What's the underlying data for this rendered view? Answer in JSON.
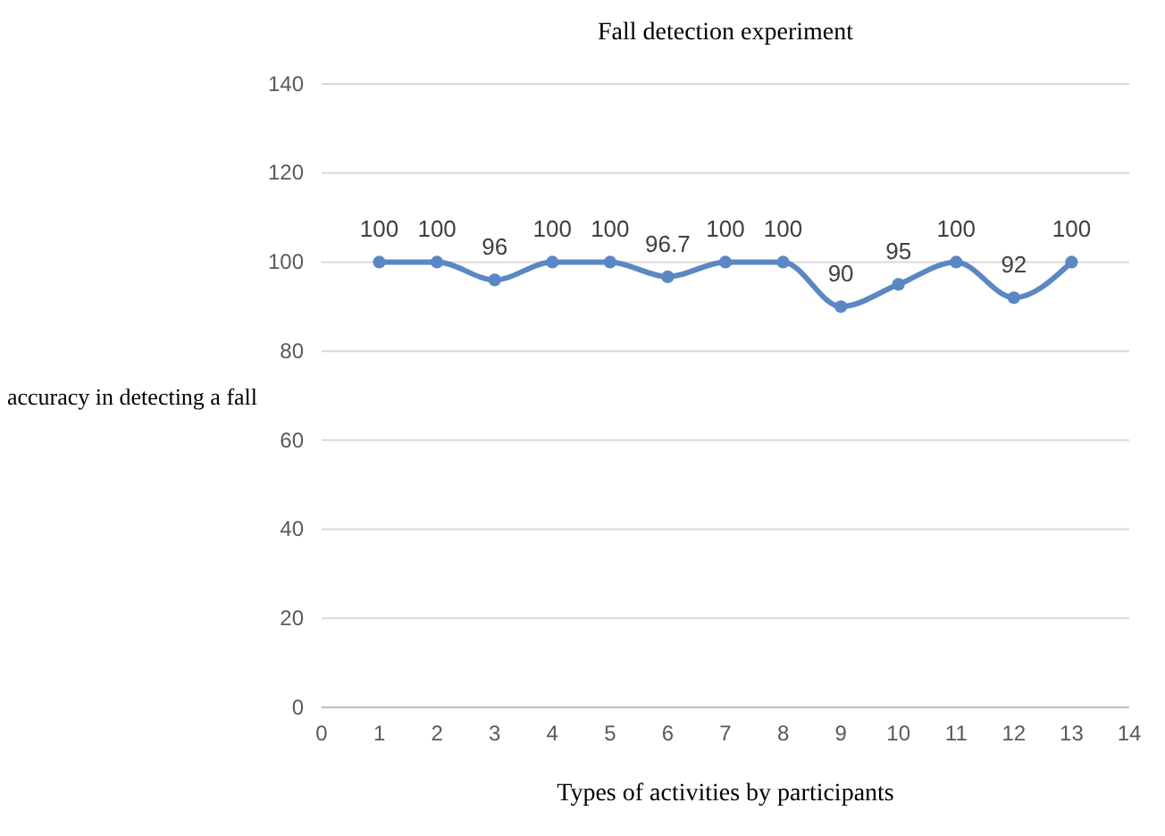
{
  "chart_data": {
    "type": "line",
    "title": "Fall detection experiment",
    "xlabel": "Types of activities by participants",
    "ylabel": "accuracy in detecting a fall",
    "x": [
      1,
      2,
      3,
      4,
      5,
      6,
      7,
      8,
      9,
      10,
      11,
      12,
      13
    ],
    "series": [
      {
        "color": "#5b87c4",
        "values": [
          100,
          100,
          96,
          100,
          100,
          96.7,
          100,
          100,
          90,
          95,
          100,
          92,
          100
        ]
      }
    ],
    "xlim": [
      0,
      14
    ],
    "xticks": [
      0,
      1,
      2,
      3,
      4,
      5,
      6,
      7,
      8,
      9,
      10,
      11,
      12,
      13,
      14
    ],
    "ylim": [
      0,
      140
    ],
    "yticks": [
      0,
      20,
      40,
      60,
      80,
      100,
      120,
      140
    ],
    "grid": "y",
    "marker": "circle",
    "line_style": "solid",
    "data_labels": true
  }
}
